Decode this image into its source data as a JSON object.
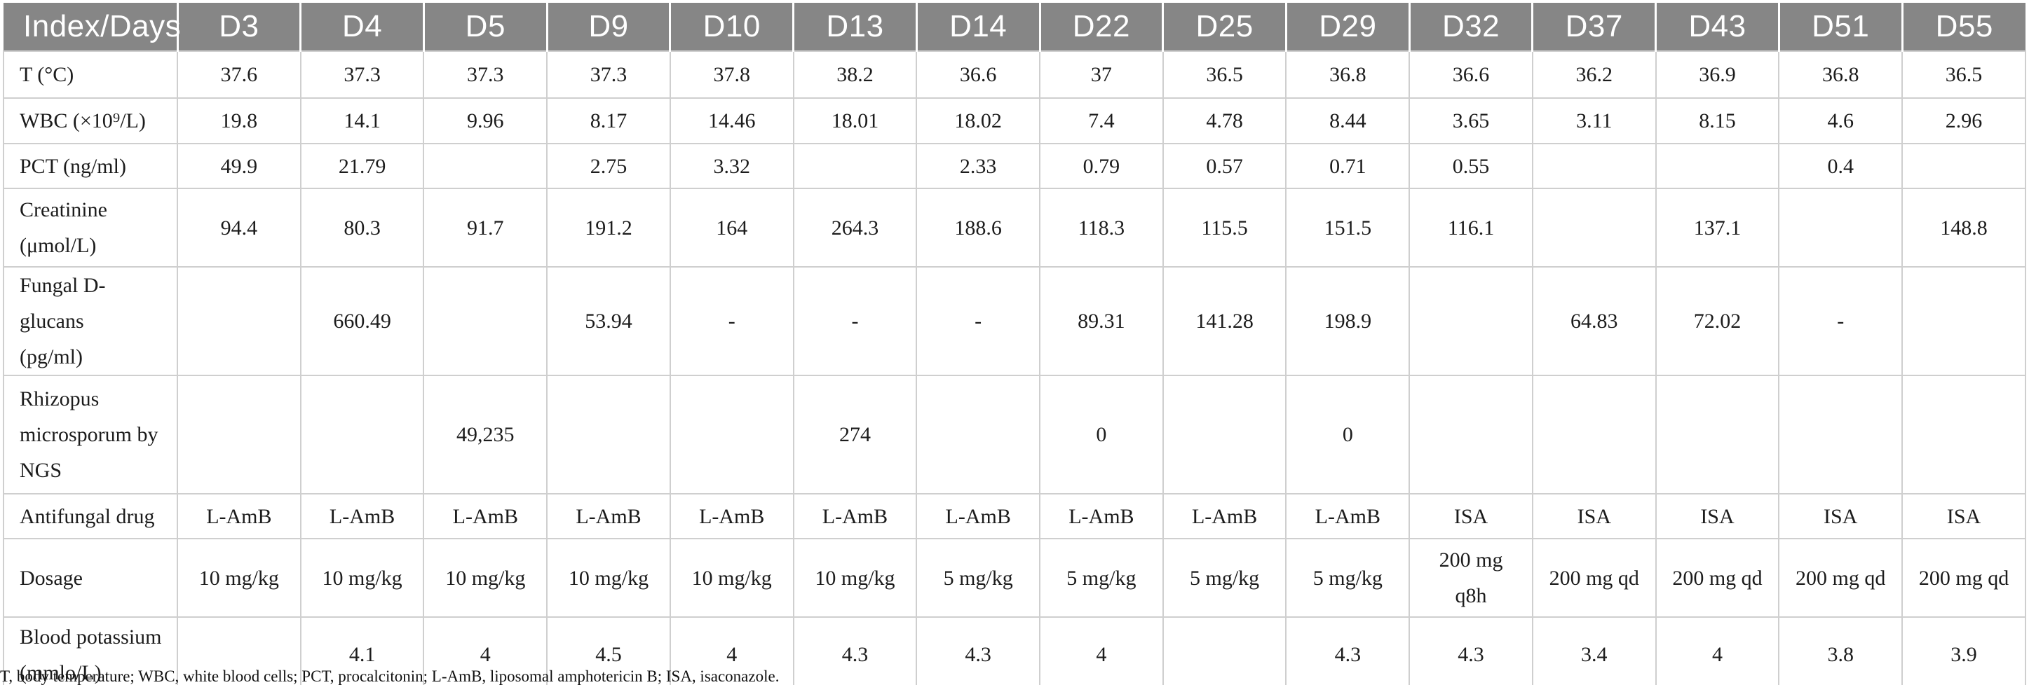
{
  "table": {
    "columns": [
      "Index/Days",
      "D3",
      "D4",
      "D5",
      "D9",
      "D10",
      "D13",
      "D14",
      "D22",
      "D25",
      "D29",
      "D32",
      "D37",
      "D43",
      "D51",
      "D55"
    ],
    "rows": [
      {
        "label": "T (°C)",
        "values": [
          "37.6",
          "37.3",
          "37.3",
          "37.3",
          "37.8",
          "38.2",
          "36.6",
          "37",
          "36.5",
          "36.8",
          "36.6",
          "36.2",
          "36.9",
          "36.8",
          "36.5"
        ]
      },
      {
        "label": "WBC (×10⁹/L)",
        "values": [
          "19.8",
          "14.1",
          "9.96",
          "8.17",
          "14.46",
          "18.01",
          "18.02",
          "7.4",
          "4.78",
          "8.44",
          "3.65",
          "3.11",
          "8.15",
          "4.6",
          "2.96"
        ]
      },
      {
        "label": "PCT (ng/ml)",
        "values": [
          "49.9",
          "21.79",
          "",
          "2.75",
          "3.32",
          "",
          "2.33",
          "0.79",
          "0.57",
          "0.71",
          "0.55",
          "",
          "",
          "0.4",
          ""
        ]
      },
      {
        "label": "Creatinine\n(μmol/L)",
        "values": [
          "94.4",
          "80.3",
          "91.7",
          "191.2",
          "164",
          "264.3",
          "188.6",
          "118.3",
          "115.5",
          "151.5",
          "116.1",
          "",
          "137.1",
          "",
          "148.8"
        ]
      },
      {
        "label": "Fungal D-glucans\n(pg/ml)",
        "values": [
          "",
          "660.49",
          "",
          "53.94",
          "-",
          "-",
          "-",
          "89.31",
          "141.28",
          "198.9",
          "",
          "64.83",
          "72.02",
          "-",
          ""
        ]
      },
      {
        "label": "Rhizopus\nmicrosporum by\nNGS",
        "values": [
          "",
          "",
          "49,235",
          "",
          "",
          "274",
          "",
          "0",
          "",
          "0",
          "",
          "",
          "",
          "",
          ""
        ]
      },
      {
        "label": "Antifungal drug",
        "values": [
          "L-AmB",
          "L-AmB",
          "L-AmB",
          "L-AmB",
          "L-AmB",
          "L-AmB",
          "L-AmB",
          "L-AmB",
          "L-AmB",
          "L-AmB",
          "ISA",
          "ISA",
          "ISA",
          "ISA",
          "ISA"
        ]
      },
      {
        "label": "Dosage",
        "values": [
          "10 mg/kg",
          "10 mg/kg",
          "10 mg/kg",
          "10 mg/kg",
          "10 mg/kg",
          "10 mg/kg",
          "5 mg/kg",
          "5 mg/kg",
          "5 mg/kg",
          "5 mg/kg",
          "200 mg\nq8h",
          "200 mg qd",
          "200 mg qd",
          "200 mg qd",
          "200 mg qd"
        ]
      },
      {
        "label": "Blood potassium\n(mmlo/L)",
        "values": [
          "",
          "4.1",
          "4",
          "4.5",
          "4",
          "4.3",
          "4.3",
          "4",
          "",
          "4.3",
          "4.3",
          "3.4",
          "4",
          "3.8",
          "3.9"
        ]
      }
    ],
    "footnote": "T, body temperature; WBC, white blood cells; PCT, procalcitonin; L-AmB, liposomal amphotericin B; ISA, isaconazole."
  },
  "colors": {
    "header_bg": "#868686",
    "header_text": "#ffffff",
    "cell_border": "#cfcfcf",
    "table_bottom_border": "#ababab",
    "body_text": "#1c1c1c"
  }
}
